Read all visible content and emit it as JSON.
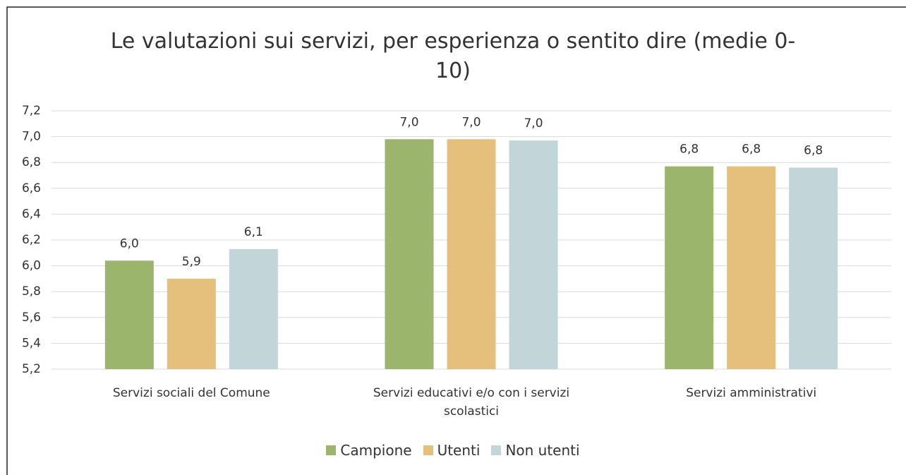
{
  "chart_data": {
    "type": "bar",
    "title": "Le valutazioni sui servizi, per esperienza o sentito dire (medie 0-10)",
    "categories": [
      "Servizi sociali del Comune",
      "Servizi educativi e/o con i servizi scolastici",
      "Servizi amministrativi"
    ],
    "series": [
      {
        "name": "Campione",
        "color": "#9bb56d",
        "values": [
          6.04,
          6.98,
          6.77
        ],
        "value_labels": [
          "6,0",
          "7,0",
          "6,8"
        ]
      },
      {
        "name": "Utenti",
        "color": "#e4c07c",
        "values": [
          5.9,
          6.98,
          6.77
        ],
        "value_labels": [
          "5,9",
          "7,0",
          "6,8"
        ]
      },
      {
        "name": "Non utenti",
        "color": "#c2d5d8",
        "values": [
          6.13,
          6.97,
          6.76
        ],
        "value_labels": [
          "6,1",
          "7,0",
          "6,8"
        ]
      }
    ],
    "ylim": [
      5.2,
      7.2
    ],
    "yticks": [
      {
        "value": 5.2,
        "label": "5,2"
      },
      {
        "value": 5.4,
        "label": "5,4"
      },
      {
        "value": 5.6,
        "label": "5,6"
      },
      {
        "value": 5.8,
        "label": "5,8"
      },
      {
        "value": 6.0,
        "label": "6,0"
      },
      {
        "value": 6.2,
        "label": "6,2"
      },
      {
        "value": 6.4,
        "label": "6,4"
      },
      {
        "value": 6.6,
        "label": "6,6"
      },
      {
        "value": 6.8,
        "label": "6,8"
      },
      {
        "value": 7.0,
        "label": "7,0"
      },
      {
        "value": 7.2,
        "label": "7,2"
      }
    ],
    "grid": true,
    "legend": "bottom"
  }
}
